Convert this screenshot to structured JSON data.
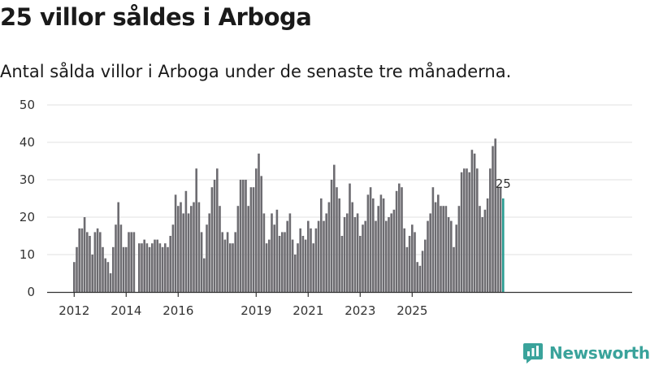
{
  "header": {
    "title": "25 villor såldes i Arboga",
    "subtitle": "Antal sålda villor i Arboga under de senaste tre månaderna."
  },
  "brand": {
    "name": "Newsworthy",
    "icon": "newsworthy-logo-icon"
  },
  "colors": {
    "bar": "#6d6c71",
    "highlight": "#2a9d92",
    "grid": "#e2e2e2",
    "axis": "#333333"
  },
  "chart_data": {
    "type": "bar",
    "title": "25 villor såldes i Arboga",
    "subtitle": "Antal sålda villor i Arboga under de senaste tre månaderna.",
    "xlabel": "",
    "ylabel": "",
    "ylim": [
      0,
      50
    ],
    "yticks": [
      0,
      10,
      20,
      30,
      40,
      50
    ],
    "xticks": [
      {
        "label": "2012",
        "index": 0
      },
      {
        "label": "2014",
        "index": 20
      },
      {
        "label": "2016",
        "index": 40
      },
      {
        "label": "2019",
        "index": 70
      },
      {
        "label": "2021",
        "index": 90
      },
      {
        "label": "2023",
        "index": 110
      },
      {
        "label": "2025",
        "index": 130
      }
    ],
    "grid": true,
    "last_value_label": "25",
    "values": [
      8,
      12,
      17,
      17,
      20,
      16,
      15,
      10,
      16,
      17,
      16,
      12,
      9,
      8,
      5,
      12,
      18,
      24,
      18,
      12,
      12,
      16,
      16,
      16,
      null,
      13,
      13,
      14,
      13,
      12,
      13,
      14,
      14,
      13,
      12,
      13,
      12,
      15,
      18,
      26,
      23,
      24,
      21,
      27,
      21,
      23,
      24,
      33,
      24,
      16,
      9,
      18,
      21,
      28,
      30,
      33,
      23,
      16,
      14,
      16,
      13,
      13,
      16,
      23,
      30,
      30,
      30,
      23,
      28,
      28,
      33,
      37,
      31,
      21,
      13,
      14,
      21,
      18,
      22,
      15,
      16,
      16,
      19,
      21,
      14,
      10,
      13,
      17,
      15,
      14,
      19,
      17,
      13,
      17,
      19,
      25,
      19,
      21,
      24,
      30,
      34,
      28,
      25,
      15,
      20,
      21,
      29,
      24,
      20,
      21,
      15,
      18,
      19,
      26,
      28,
      25,
      19,
      23,
      26,
      25,
      19,
      20,
      21,
      22,
      27,
      29,
      28,
      17,
      12,
      15,
      18,
      16,
      8,
      7,
      11,
      14,
      19,
      21,
      28,
      24,
      26,
      23,
      23,
      23,
      20,
      19,
      12,
      18,
      23,
      32,
      33,
      33,
      32,
      38,
      37,
      33,
      23,
      20,
      22,
      25,
      33,
      39,
      41,
      28,
      28,
      25
    ]
  }
}
